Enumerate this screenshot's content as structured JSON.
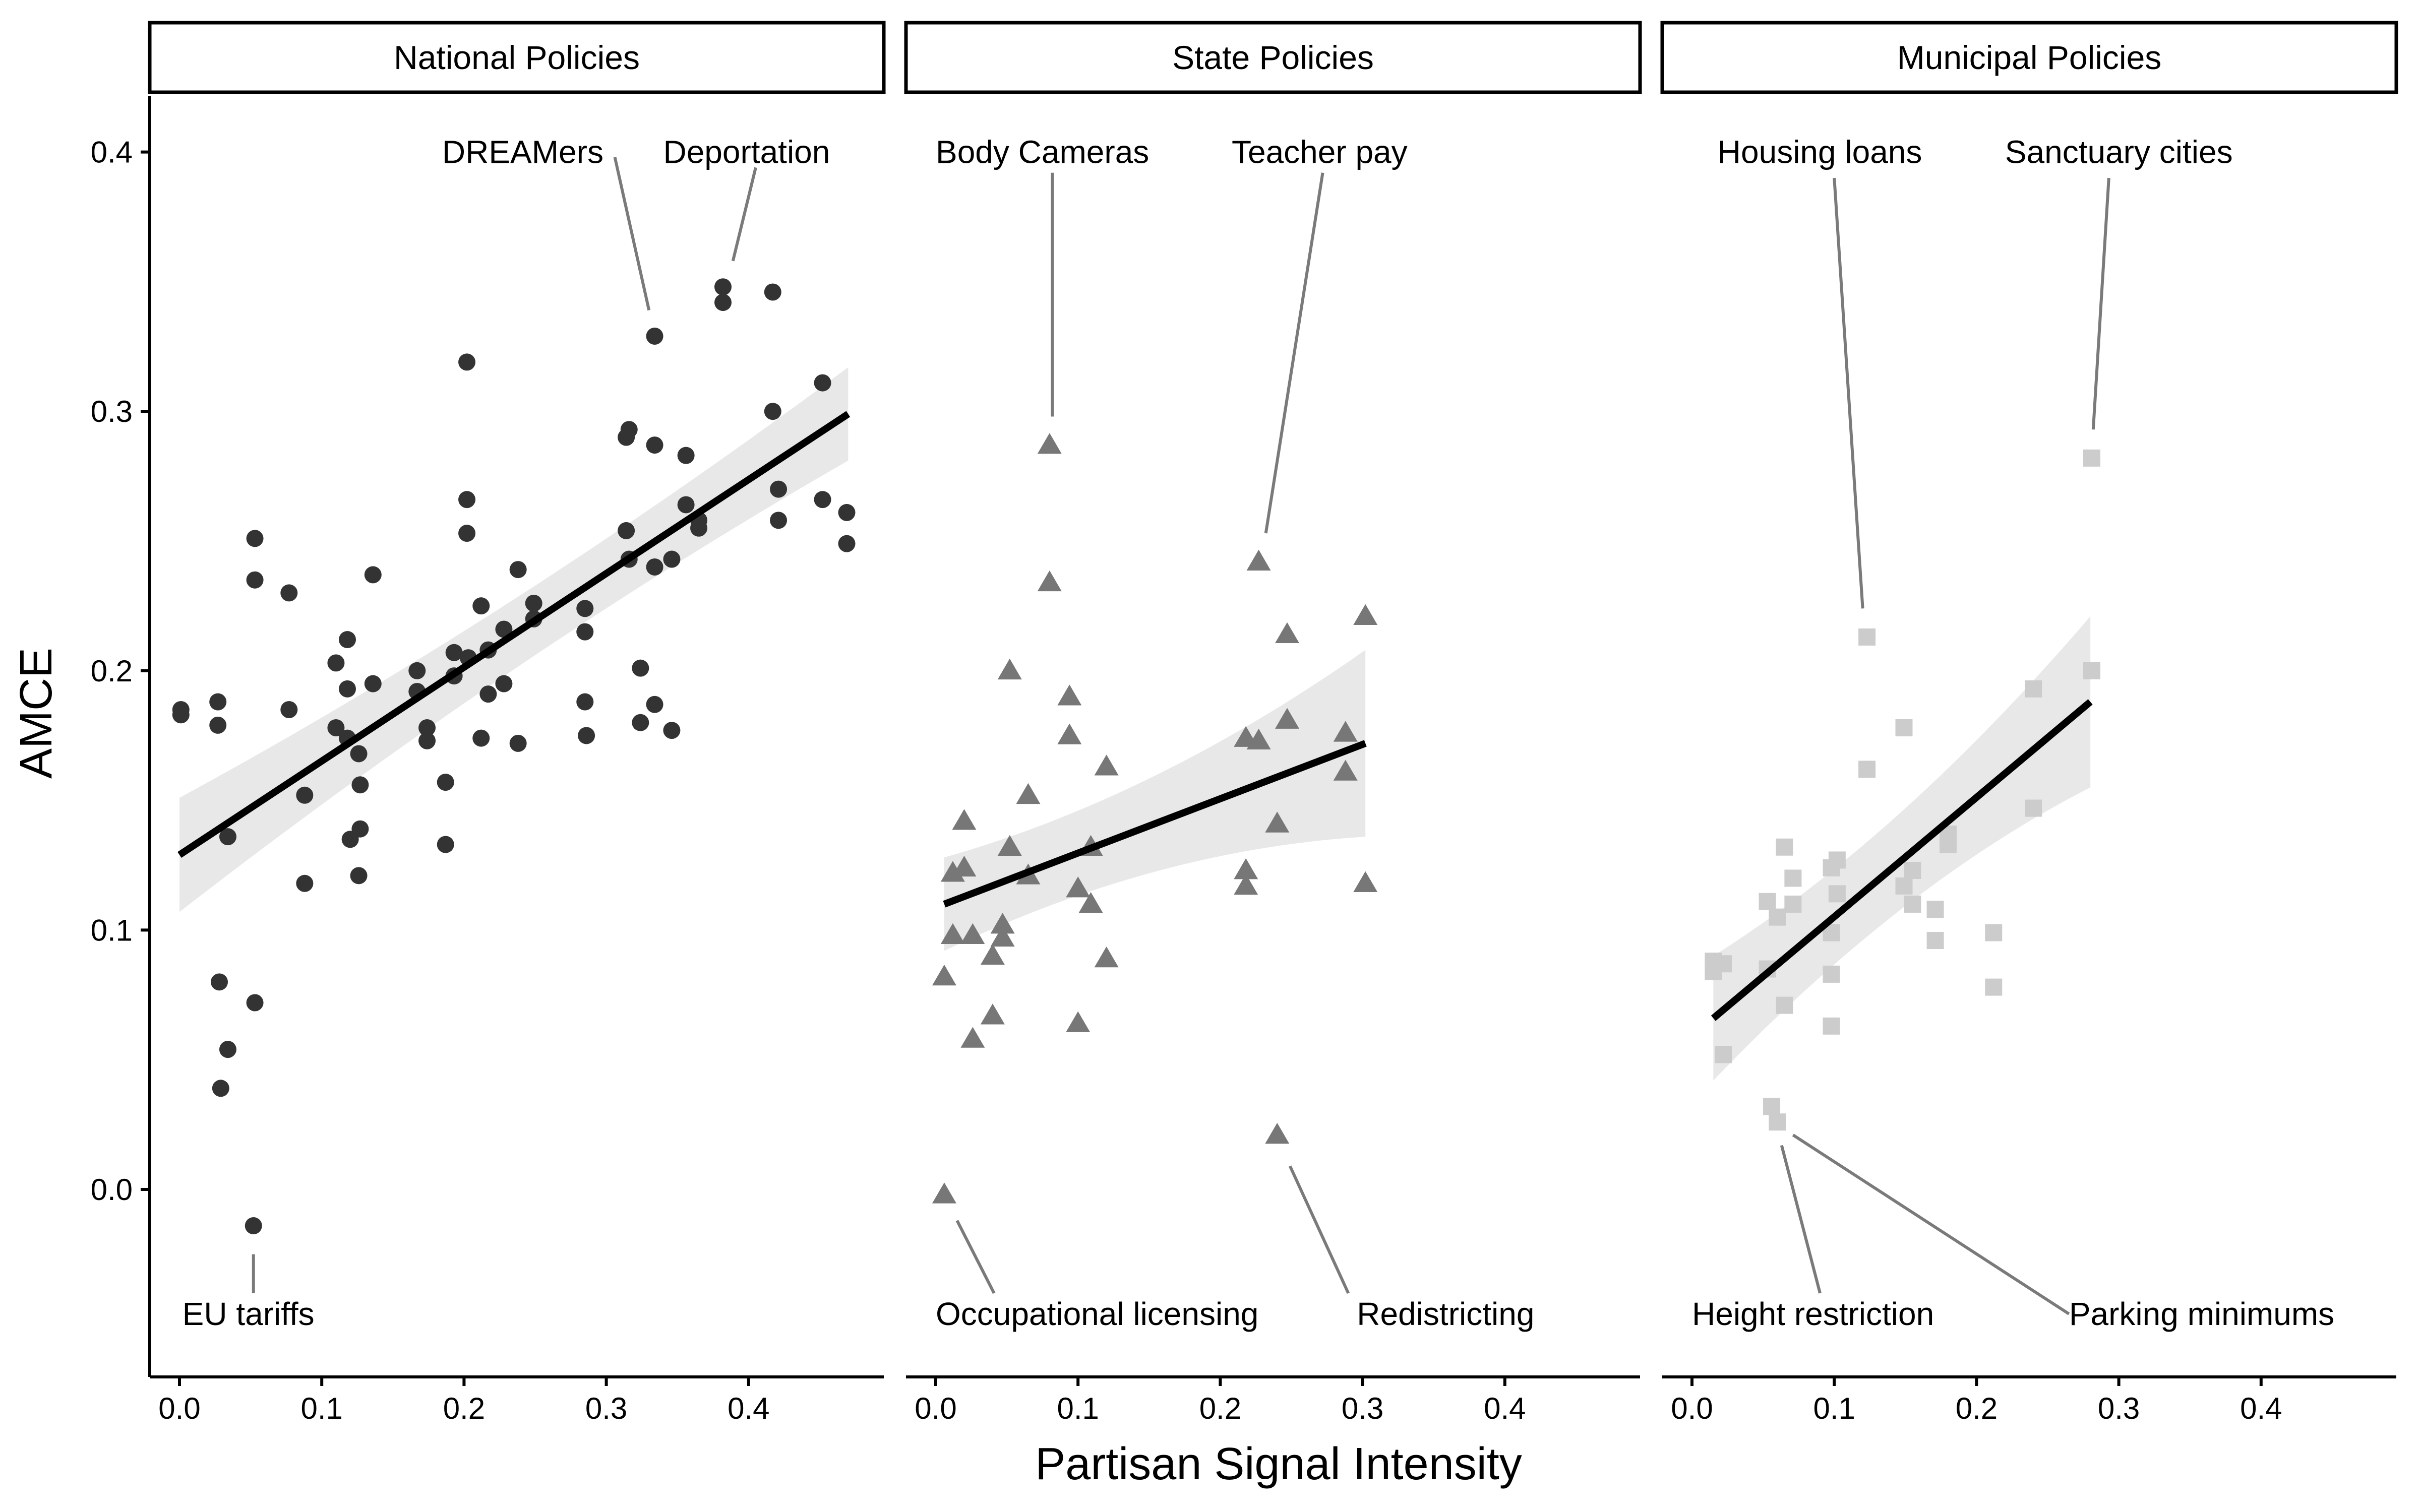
{
  "chart_data": {
    "type": "scatter",
    "xlabel": "Partisan Signal Intensity",
    "ylabel": "AMCE",
    "xlim": [
      -0.02,
      0.49
    ],
    "ylim": [
      -0.07,
      0.425
    ],
    "x_ticks": [
      0.0,
      0.1,
      0.2,
      0.3,
      0.4
    ],
    "y_ticks": [
      0.0,
      0.1,
      0.2,
      0.3,
      0.4
    ],
    "x_tick_labels": [
      "0.0",
      "0.1",
      "0.2",
      "0.3",
      "0.4"
    ],
    "y_tick_labels": [
      "0.0",
      "0.1",
      "0.2",
      "0.3",
      "0.4"
    ],
    "grid": false,
    "legend": "none",
    "panels": [
      {
        "title": "National Policies",
        "marker": "circle",
        "color": "#333333",
        "fit_line": {
          "x": [
            0.0,
            0.47
          ],
          "y": [
            0.129,
            0.299
          ],
          "band_halfwidth_ends": [
            0.022,
            0.018
          ],
          "band_halfwidth_mid": 0.007
        },
        "points": [
          [
            0.001,
            0.185
          ],
          [
            0.001,
            0.183
          ],
          [
            0.027,
            0.188
          ],
          [
            0.027,
            0.179
          ],
          [
            0.034,
            0.136
          ],
          [
            0.028,
            0.08
          ],
          [
            0.034,
            0.054
          ],
          [
            0.029,
            0.039
          ],
          [
            0.053,
            0.251
          ],
          [
            0.053,
            0.235
          ],
          [
            0.053,
            0.072
          ],
          [
            0.052,
            -0.014
          ],
          [
            0.077,
            0.23
          ],
          [
            0.077,
            0.185
          ],
          [
            0.088,
            0.118
          ],
          [
            0.088,
            0.152
          ],
          [
            0.11,
            0.203
          ],
          [
            0.11,
            0.178
          ],
          [
            0.118,
            0.212
          ],
          [
            0.118,
            0.193
          ],
          [
            0.118,
            0.174
          ],
          [
            0.12,
            0.135
          ],
          [
            0.126,
            0.168
          ],
          [
            0.127,
            0.156
          ],
          [
            0.127,
            0.139
          ],
          [
            0.126,
            0.121
          ],
          [
            0.136,
            0.237
          ],
          [
            0.136,
            0.195
          ],
          [
            0.167,
            0.2
          ],
          [
            0.167,
            0.192
          ],
          [
            0.174,
            0.178
          ],
          [
            0.174,
            0.173
          ],
          [
            0.187,
            0.157
          ],
          [
            0.187,
            0.133
          ],
          [
            0.193,
            0.207
          ],
          [
            0.193,
            0.198
          ],
          [
            0.202,
            0.319
          ],
          [
            0.202,
            0.266
          ],
          [
            0.202,
            0.253
          ],
          [
            0.203,
            0.205
          ],
          [
            0.212,
            0.225
          ],
          [
            0.212,
            0.174
          ],
          [
            0.217,
            0.208
          ],
          [
            0.217,
            0.191
          ],
          [
            0.228,
            0.216
          ],
          [
            0.228,
            0.195
          ],
          [
            0.238,
            0.239
          ],
          [
            0.238,
            0.172
          ],
          [
            0.249,
            0.226
          ],
          [
            0.249,
            0.22
          ],
          [
            0.285,
            0.224
          ],
          [
            0.285,
            0.215
          ],
          [
            0.285,
            0.188
          ],
          [
            0.286,
            0.175
          ],
          [
            0.314,
            0.29
          ],
          [
            0.314,
            0.254
          ],
          [
            0.316,
            0.293
          ],
          [
            0.316,
            0.243
          ],
          [
            0.324,
            0.201
          ],
          [
            0.324,
            0.18
          ],
          [
            0.334,
            0.329
          ],
          [
            0.334,
            0.287
          ],
          [
            0.334,
            0.24
          ],
          [
            0.334,
            0.187
          ],
          [
            0.346,
            0.243
          ],
          [
            0.346,
            0.177
          ],
          [
            0.356,
            0.283
          ],
          [
            0.356,
            0.264
          ],
          [
            0.365,
            0.258
          ],
          [
            0.365,
            0.255
          ],
          [
            0.382,
            0.348
          ],
          [
            0.382,
            0.342
          ],
          [
            0.417,
            0.346
          ],
          [
            0.417,
            0.3
          ],
          [
            0.421,
            0.27
          ],
          [
            0.421,
            0.258
          ],
          [
            0.452,
            0.311
          ],
          [
            0.452,
            0.266
          ],
          [
            0.469,
            0.261
          ],
          [
            0.469,
            0.249
          ]
        ],
        "annotations": [
          {
            "text": "DREAMers",
            "point": [
              0.334,
              0.329
            ],
            "label_at": [
              0.298,
              0.4
            ],
            "anchor": "end",
            "from": [
              0.306,
              0.398
            ],
            "to": [
              0.33,
              0.339
            ]
          },
          {
            "text": "Deportation",
            "point": [
              0.382,
              0.348
            ],
            "label_at": [
              0.34,
              0.4
            ],
            "anchor": "start",
            "from": [
              0.405,
              0.394
            ],
            "to": [
              0.389,
              0.358
            ]
          },
          {
            "text": "EU tariffs",
            "point": [
              0.052,
              -0.014
            ],
            "label_at": [
              0.002,
              -0.048
            ],
            "anchor": "start",
            "from": [
              0.052,
              -0.025
            ],
            "to": [
              0.052,
              -0.04
            ]
          }
        ]
      },
      {
        "title": "State Policies",
        "marker": "triangle",
        "color": "#777777",
        "fit_line": {
          "x": [
            0.006,
            0.302
          ],
          "y": [
            0.11,
            0.172
          ],
          "band_halfwidth_ends": [
            0.018,
            0.036
          ],
          "band_halfwidth_mid": 0.01
        },
        "points": [
          [
            0.006,
            0.082
          ],
          [
            0.006,
            -0.002
          ],
          [
            0.012,
            0.122
          ],
          [
            0.012,
            0.098
          ],
          [
            0.02,
            0.142
          ],
          [
            0.02,
            0.124
          ],
          [
            0.026,
            0.098
          ],
          [
            0.026,
            0.058
          ],
          [
            0.04,
            0.09
          ],
          [
            0.04,
            0.067
          ],
          [
            0.047,
            0.102
          ],
          [
            0.047,
            0.097
          ],
          [
            0.052,
            0.2
          ],
          [
            0.052,
            0.132
          ],
          [
            0.065,
            0.152
          ],
          [
            0.065,
            0.121
          ],
          [
            0.08,
            0.287
          ],
          [
            0.08,
            0.234
          ],
          [
            0.094,
            0.19
          ],
          [
            0.094,
            0.175
          ],
          [
            0.1,
            0.116
          ],
          [
            0.1,
            0.064
          ],
          [
            0.109,
            0.132
          ],
          [
            0.109,
            0.11
          ],
          [
            0.12,
            0.163
          ],
          [
            0.12,
            0.089
          ],
          [
            0.218,
            0.174
          ],
          [
            0.218,
            0.123
          ],
          [
            0.218,
            0.117
          ],
          [
            0.227,
            0.242
          ],
          [
            0.227,
            0.173
          ],
          [
            0.24,
            0.141
          ],
          [
            0.24,
            0.021
          ],
          [
            0.247,
            0.214
          ],
          [
            0.247,
            0.181
          ],
          [
            0.288,
            0.176
          ],
          [
            0.288,
            0.161
          ],
          [
            0.302,
            0.221
          ],
          [
            0.302,
            0.118
          ]
        ],
        "annotations": [
          {
            "text": "Body Cameras",
            "point": [
              0.08,
              0.287
            ],
            "label_at": [
              0.0,
              0.4
            ],
            "anchor": "start",
            "from": [
              0.082,
              0.392
            ],
            "to": [
              0.082,
              0.298
            ]
          },
          {
            "text": "Teacher pay",
            "point": [
              0.227,
              0.242
            ],
            "label_at": [
              0.208,
              0.4
            ],
            "anchor": "start",
            "from": [
              0.272,
              0.392
            ],
            "to": [
              0.232,
              0.253
            ]
          },
          {
            "text": "Occupational licensing",
            "point": [
              0.006,
              -0.002
            ],
            "label_at": [
              0.0,
              -0.048
            ],
            "anchor": "start",
            "from": [
              0.015,
              -0.012
            ],
            "to": [
              0.041,
              -0.04
            ]
          },
          {
            "text": "Redistricting",
            "point": [
              0.24,
              0.021
            ],
            "label_at": [
              0.296,
              -0.048
            ],
            "anchor": "start",
            "from": [
              0.249,
              0.009
            ],
            "to": [
              0.29,
              -0.04
            ]
          }
        ]
      },
      {
        "title": "Municipal Policies",
        "marker": "square",
        "color": "#cccccc",
        "fit_line": {
          "x": [
            0.015,
            0.28
          ],
          "y": [
            0.066,
            0.188
          ],
          "band_halfwidth_ends": [
            0.024,
            0.033
          ],
          "band_halfwidth_mid": 0.009
        },
        "points": [
          [
            0.015,
            0.088
          ],
          [
            0.015,
            0.084
          ],
          [
            0.022,
            0.087
          ],
          [
            0.022,
            0.052
          ],
          [
            0.053,
            0.111
          ],
          [
            0.053,
            0.085
          ],
          [
            0.056,
            0.032
          ],
          [
            0.06,
            0.105
          ],
          [
            0.06,
            0.026
          ],
          [
            0.065,
            0.132
          ],
          [
            0.065,
            0.071
          ],
          [
            0.071,
            0.12
          ],
          [
            0.071,
            0.11
          ],
          [
            0.098,
            0.124
          ],
          [
            0.098,
            0.099
          ],
          [
            0.098,
            0.083
          ],
          [
            0.098,
            0.063
          ],
          [
            0.102,
            0.127
          ],
          [
            0.102,
            0.114
          ],
          [
            0.123,
            0.213
          ],
          [
            0.123,
            0.162
          ],
          [
            0.149,
            0.178
          ],
          [
            0.149,
            0.117
          ],
          [
            0.155,
            0.123
          ],
          [
            0.155,
            0.11
          ],
          [
            0.171,
            0.108
          ],
          [
            0.171,
            0.096
          ],
          [
            0.18,
            0.137
          ],
          [
            0.18,
            0.133
          ],
          [
            0.212,
            0.099
          ],
          [
            0.212,
            0.078
          ],
          [
            0.24,
            0.193
          ],
          [
            0.24,
            0.147
          ],
          [
            0.281,
            0.282
          ],
          [
            0.281,
            0.2
          ]
        ],
        "annotations": [
          {
            "text": "Housing loans",
            "point": [
              0.123,
              0.213
            ],
            "label_at": [
              0.018,
              0.4
            ],
            "anchor": "start",
            "from": [
              0.1,
              0.39
            ],
            "to": [
              0.12,
              0.224
            ]
          },
          {
            "text": "Sanctuary cities",
            "point": [
              0.281,
              0.282
            ],
            "label_at": [
              0.22,
              0.4
            ],
            "anchor": "start",
            "from": [
              0.293,
              0.39
            ],
            "to": [
              0.282,
              0.293
            ]
          },
          {
            "text": "Height restriction",
            "point": [
              0.06,
              0.026
            ],
            "label_at": [
              0.0,
              -0.048
            ],
            "anchor": "start",
            "from": [
              0.063,
              0.017
            ],
            "to": [
              0.09,
              -0.04
            ]
          },
          {
            "text": "Parking minimums",
            "point": [
              0.06,
              0.026
            ],
            "label_at": [
              0.265,
              -0.048
            ],
            "anchor": "start",
            "from": [
              0.071,
              0.021
            ],
            "to": [
              0.265,
              -0.048
            ]
          }
        ]
      }
    ]
  }
}
